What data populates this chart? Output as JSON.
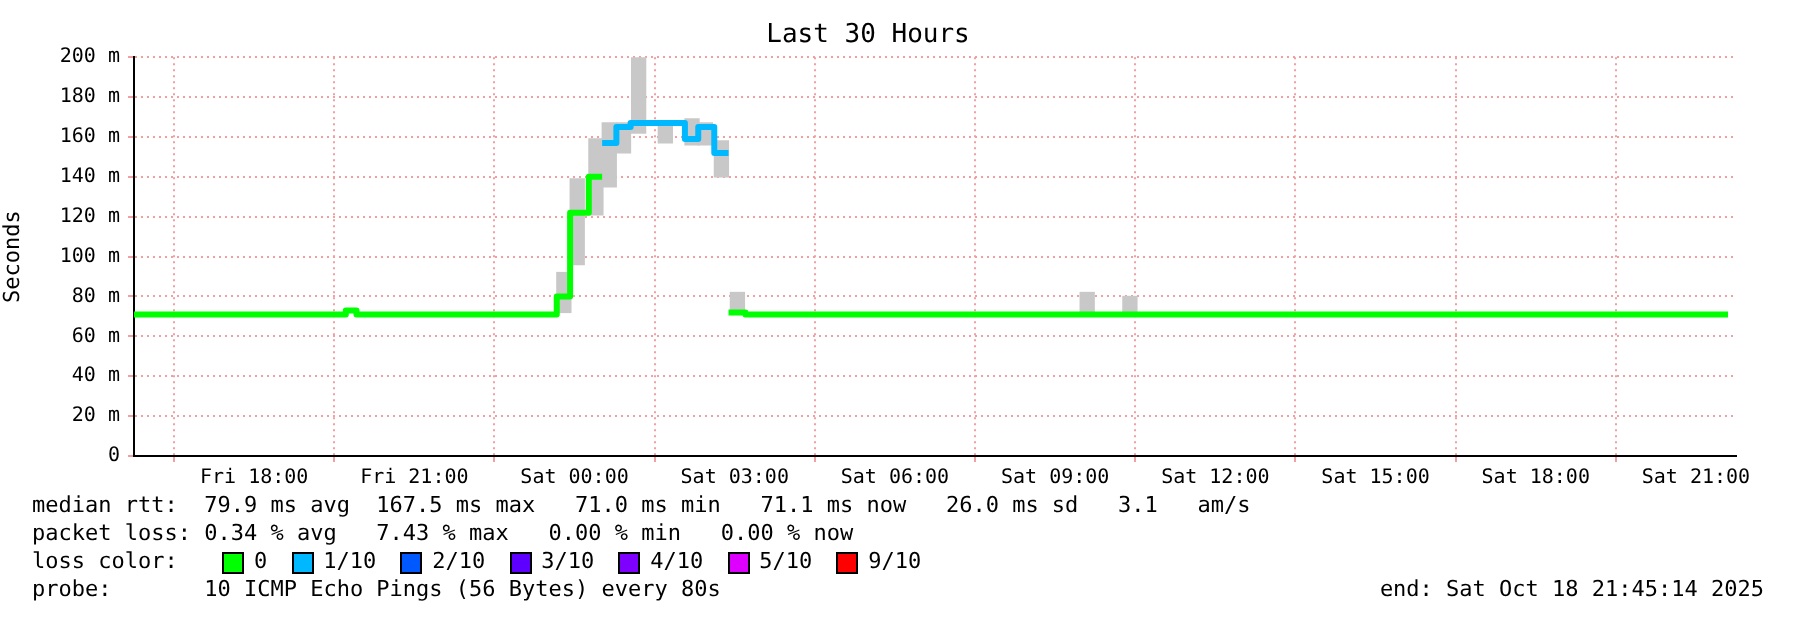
{
  "chart_data": {
    "type": "step",
    "title": "Last 30 Hours",
    "ylabel": "Seconds",
    "xlim": [
      "2025-10-17T15:45",
      "2025-10-18T21:45"
    ],
    "xticks": [
      {
        "value": "2025-10-17T18:00",
        "label": "Fri 18:00"
      },
      {
        "value": "2025-10-17T21:00",
        "label": "Fri 21:00"
      },
      {
        "value": "2025-10-18T00:00",
        "label": "Sat 00:00"
      },
      {
        "value": "2025-10-18T03:00",
        "label": "Sat 03:00"
      },
      {
        "value": "2025-10-18T06:00",
        "label": "Sat 06:00"
      },
      {
        "value": "2025-10-18T09:00",
        "label": "Sat 09:00"
      },
      {
        "value": "2025-10-18T12:00",
        "label": "Sat 12:00"
      },
      {
        "value": "2025-10-18T15:00",
        "label": "Sat 15:00"
      },
      {
        "value": "2025-10-18T18:00",
        "label": "Sat 18:00"
      },
      {
        "value": "2025-10-18T21:00",
        "label": "Sat 21:00"
      }
    ],
    "ylim": [
      0,
      200
    ],
    "yticks": [
      0,
      {
        "value": 20,
        "label": "20 m"
      },
      {
        "value": 40,
        "label": "40 m"
      },
      {
        "value": 60,
        "label": "60 m"
      },
      {
        "value": 80,
        "label": "80 m"
      },
      {
        "value": 100,
        "label": "100 m"
      },
      {
        "value": 120,
        "label": "120 m"
      },
      {
        "value": 140,
        "label": "140 m"
      },
      {
        "value": 160,
        "label": "160 m"
      },
      {
        "value": 180,
        "label": "180 m"
      },
      {
        "value": 200,
        "label": "200 m"
      }
    ],
    "grid": true,
    "legend": "bottom left",
    "legend_title": "loss color:",
    "marker": "none",
    "series": [
      {
        "type": "bar",
        "color": "#c8c8c8",
        "x": [
          "2025-10-17T23:48",
          "2025-10-18T00:03",
          "2025-10-18T00:24",
          "2025-10-18T00:39",
          "2025-10-18T00:55",
          "2025-10-18T01:12",
          "2025-10-18T01:42",
          "2025-10-18T02:12",
          "2025-10-18T02:27",
          "2025-10-18T02:45",
          "2025-10-18T03:03",
          "2025-10-18T09:36",
          "2025-10-18T10:24"
        ],
        "base": [
          72,
          96,
          121,
          135,
          152,
          162,
          157,
          156,
          156,
          140,
          71,
          71,
          71
        ],
        "values": [
          20,
          43,
          38,
          32,
          15,
          39,
          10,
          13,
          11,
          18,
          11,
          11,
          9
        ]
      },
      {
        "name": "0",
        "color": "#00ff00",
        "x": [
          "2025-10-17T15:45",
          "2025-10-17T19:43",
          "2025-10-17T19:55",
          "2025-10-17T23:40",
          "2025-10-17T23:55",
          "2025-10-18T00:16",
          "2025-10-18T00:31",
          "2025-10-18T00:36",
          "2025-10-18T02:53",
          "2025-10-18T03:12",
          "2025-10-18T21:36"
        ],
        "values": [
          71,
          73,
          71,
          80,
          122,
          140,
          140,
          null,
          72,
          71,
          71
        ]
      },
      {
        "name": "1/10",
        "color": "#00b8ff",
        "x": [
          "2025-10-18T00:31",
          "2025-10-18T00:47",
          "2025-10-18T01:03",
          "2025-10-18T02:04",
          "2025-10-18T02:19",
          "2025-10-18T02:37",
          "2025-10-18T02:53"
        ],
        "values": [
          157,
          165,
          167,
          159,
          165,
          152,
          152
        ]
      },
      {
        "name": "2/10",
        "color": "#0059ff"
      },
      {
        "name": "3/10",
        "color": "#5e00ff"
      },
      {
        "name": "4/10",
        "color": "#7e00ff"
      },
      {
        "name": "5/10",
        "color": "#dd00ff"
      },
      {
        "name": "9/10",
        "color": "#ff0000"
      }
    ],
    "annotations": [
      "median rtt:  79.9 ms avg  167.5 ms max   71.0 ms min   71.1 ms now   26.0 ms sd   3.1   am/s",
      "packet loss: 0.34 % avg   7.43 % max   0.00 % min   0.00 % now",
      "probe:       10 ICMP Echo Pings (56 Bytes) every 80s",
      "end: Sat Oct 18 21:45:14 2025"
    ]
  }
}
